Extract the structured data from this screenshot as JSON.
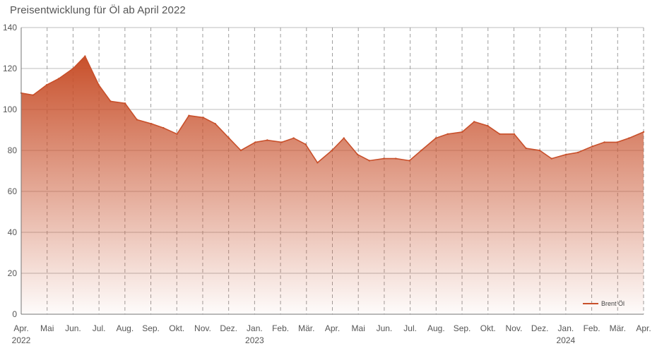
{
  "chart_data": {
    "type": "area",
    "title": "Preisentwicklung für Öl ab April 2022",
    "xlabel": "",
    "ylabel": "",
    "ylim": [
      0,
      140
    ],
    "yticks": [
      "0",
      "20",
      "40",
      "60",
      "80",
      "100",
      "120",
      "140"
    ],
    "xticks": [
      {
        "label": "Apr.",
        "year": "2022"
      },
      {
        "label": "Mai",
        "year": ""
      },
      {
        "label": "Jun.",
        "year": ""
      },
      {
        "label": "Jul.",
        "year": ""
      },
      {
        "label": "Aug.",
        "year": ""
      },
      {
        "label": "Sep.",
        "year": ""
      },
      {
        "label": "Okt.",
        "year": ""
      },
      {
        "label": "Nov.",
        "year": ""
      },
      {
        "label": "Dez.",
        "year": ""
      },
      {
        "label": "Jan.",
        "year": "2023"
      },
      {
        "label": "Feb.",
        "year": ""
      },
      {
        "label": "Mär.",
        "year": ""
      },
      {
        "label": "Apr.",
        "year": ""
      },
      {
        "label": "Mai",
        "year": ""
      },
      {
        "label": "Jun.",
        "year": ""
      },
      {
        "label": "Jul.",
        "year": ""
      },
      {
        "label": "Aug.",
        "year": ""
      },
      {
        "label": "Sep.",
        "year": ""
      },
      {
        "label": "Okt.",
        "year": ""
      },
      {
        "label": "Nov.",
        "year": ""
      },
      {
        "label": "Dez.",
        "year": ""
      },
      {
        "label": "Jan.",
        "year": "2024"
      },
      {
        "label": "Feb.",
        "year": ""
      },
      {
        "label": "Mär.",
        "year": ""
      },
      {
        "label": "Apr.",
        "year": ""
      }
    ],
    "grid": true,
    "legend_position": "bottom-right",
    "series": [
      {
        "name": "Brent Öl",
        "color": "#c8502b",
        "x": [
          "2022-04-01",
          "2022-04-15",
          "2022-05-01",
          "2022-05-15",
          "2022-06-01",
          "2022-06-15",
          "2022-07-01",
          "2022-07-15",
          "2022-08-01",
          "2022-08-15",
          "2022-09-01",
          "2022-09-15",
          "2022-10-01",
          "2022-10-15",
          "2022-11-01",
          "2022-11-15",
          "2022-12-01",
          "2022-12-15",
          "2023-01-01",
          "2023-01-15",
          "2023-02-01",
          "2023-02-15",
          "2023-03-01",
          "2023-03-15",
          "2023-04-01",
          "2023-04-15",
          "2023-05-01",
          "2023-05-15",
          "2023-06-01",
          "2023-06-15",
          "2023-07-01",
          "2023-07-15",
          "2023-08-01",
          "2023-08-15",
          "2023-09-01",
          "2023-09-15",
          "2023-10-01",
          "2023-10-15",
          "2023-11-01",
          "2023-11-15",
          "2023-12-01",
          "2023-12-15",
          "2024-01-01",
          "2024-01-15",
          "2024-02-01",
          "2024-02-15",
          "2024-03-01",
          "2024-03-15",
          "2024-04-01"
        ],
        "values": [
          108,
          107,
          112,
          115,
          120,
          126,
          112,
          104,
          103,
          95,
          93,
          91,
          88,
          97,
          96,
          93,
          86,
          80,
          84,
          85,
          84,
          86,
          83,
          74,
          80,
          86,
          78,
          75,
          76,
          76,
          75,
          80,
          86,
          88,
          89,
          94,
          92,
          88,
          88,
          81,
          80,
          76,
          78,
          79,
          82,
          84,
          84,
          86,
          89
        ]
      }
    ]
  }
}
